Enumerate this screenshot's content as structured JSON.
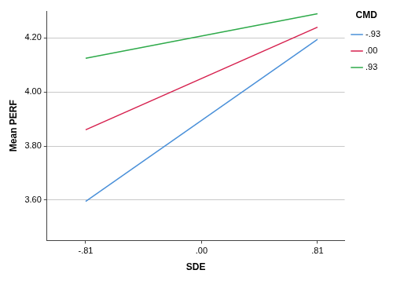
{
  "chart_data": {
    "type": "line",
    "x_label": "SDE",
    "y_label": "Mean PERF",
    "x": [
      -0.81,
      0.81
    ],
    "series": [
      {
        "name": "-.93",
        "color": "#4a90d9",
        "values": [
          3.595,
          4.195
        ]
      },
      {
        "name": ".00",
        "color": "#d6204e",
        "values": [
          3.86,
          4.24
        ]
      },
      {
        "name": ".93",
        "color": "#2eaa4a",
        "values": [
          4.125,
          4.29
        ]
      }
    ],
    "xlim": [
      -1.08,
      1.0
    ],
    "xticks": [
      {
        "value": -0.81,
        "label": "-.81"
      },
      {
        "value": 0,
        "label": ".00"
      },
      {
        "value": 0.81,
        "label": ".81"
      }
    ],
    "ylim": [
      3.45,
      4.3
    ],
    "yticks": [
      {
        "value": 3.6,
        "label": "3.60"
      },
      {
        "value": 3.8,
        "label": "3.80"
      },
      {
        "value": 4.0,
        "label": "4.00"
      },
      {
        "value": 4.2,
        "label": "4.20"
      }
    ],
    "grid": true,
    "legend": "top-right",
    "legend_title": "CMD"
  }
}
